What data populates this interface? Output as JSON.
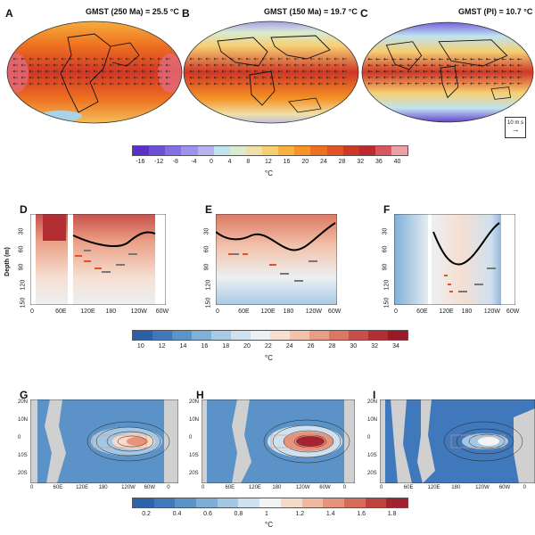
{
  "row1": {
    "panels": [
      {
        "letter": "A",
        "title": "GMST (250 Ma) = 25.5 °C"
      },
      {
        "letter": "B",
        "title": "GMST (150 Ma) = 19.7 °C"
      },
      {
        "letter": "C",
        "title": "GMST (PI) = 10.7 °C"
      }
    ],
    "wind_key": {
      "value": "10 m s",
      "arrow": "→"
    },
    "colorbar": {
      "ticks": [
        "-16",
        "-12",
        "-8",
        "-4",
        "0",
        "4",
        "8",
        "12",
        "16",
        "20",
        "24",
        "28",
        "32",
        "36",
        "40"
      ],
      "unit": "°C",
      "colors": [
        "#5b2fc9",
        "#6d4fd8",
        "#8470e4",
        "#9d92ee",
        "#b8b2f3",
        "#bfe4f0",
        "#d8ecd2",
        "#efe0a8",
        "#f6cf72",
        "#f7b13f",
        "#f59325",
        "#ee7020",
        "#e25225",
        "#cf3726",
        "#bd2a2c",
        "#d8575c",
        "#eea0a5"
      ]
    }
  },
  "row2": {
    "panels": [
      {
        "letter": "D"
      },
      {
        "letter": "E"
      },
      {
        "letter": "F"
      }
    ],
    "ylabel": "Depth (m)",
    "yticks": [
      "30",
      "60",
      "90",
      "120",
      "150"
    ],
    "xticks": [
      [
        "0",
        "60E",
        "120E",
        "180",
        "120W",
        "60W"
      ],
      [
        "0",
        "60E",
        "120E",
        "180",
        "120W",
        "60W"
      ],
      [
        "0",
        "60E",
        "120E",
        "180",
        "120W",
        "60W"
      ]
    ],
    "colorbar": {
      "ticks": [
        "10",
        "12",
        "14",
        "16",
        "18",
        "20",
        "22",
        "24",
        "26",
        "28",
        "30",
        "32",
        "34"
      ],
      "unit": "°C",
      "colors": [
        "#2b5fa7",
        "#3f79b9",
        "#5a95c9",
        "#7fb0d8",
        "#a7cae5",
        "#cfe1ef",
        "#ecf0f3",
        "#f6dfd2",
        "#f2c2aa",
        "#ea9f84",
        "#dd7762",
        "#c9504a",
        "#b32e33",
        "#981a27"
      ]
    }
  },
  "row3": {
    "panels": [
      {
        "letter": "G"
      },
      {
        "letter": "H"
      },
      {
        "letter": "I"
      }
    ],
    "yticks": [
      "20N",
      "10N",
      "0",
      "10S",
      "20S"
    ],
    "xticks": [
      "0",
      "60E",
      "120E",
      "180",
      "120W",
      "60W",
      "0"
    ],
    "colorbar": {
      "ticks": [
        "0.2",
        "0.4",
        "0.6",
        "0.8",
        "1",
        "1.2",
        "1.4",
        "1.6",
        "1.8"
      ],
      "unit": "°C",
      "colors": [
        "#2d63ad",
        "#3f78bb",
        "#5b93c9",
        "#7eaed8",
        "#a4c8e4",
        "#cfe0ee",
        "#f3f3f3",
        "#f5d9c9",
        "#efb9a0",
        "#e5937a",
        "#d66b57",
        "#bf433d",
        "#a32430"
      ]
    }
  }
}
